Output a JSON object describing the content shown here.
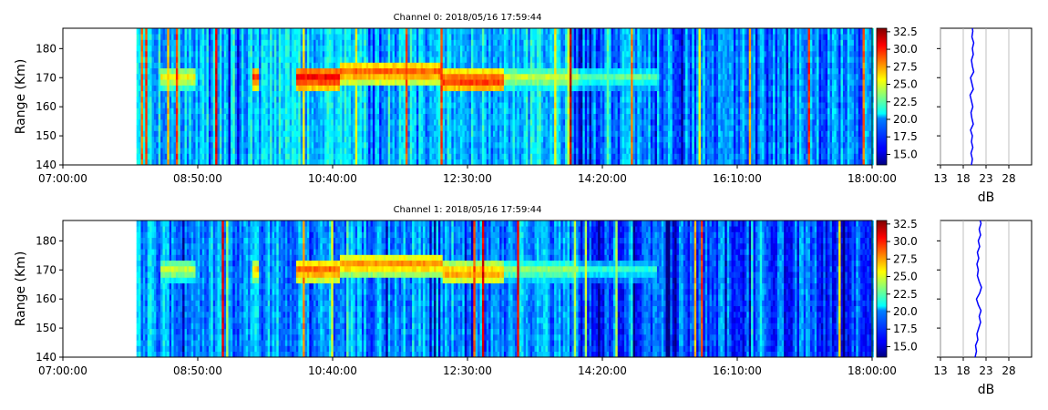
{
  "chart_data": [
    {
      "type": "heatmap",
      "title": "Channel 0: 2018/05/16 17:59:44",
      "ylabel": "Range (Km)",
      "xlabel": "",
      "x_tick_labels": [
        "07:00:00",
        "08:50:00",
        "10:40:00",
        "12:30:00",
        "14:20:00",
        "16:10:00",
        "18:00:00"
      ],
      "xlim": [
        "07:00:00",
        "18:00:00"
      ],
      "y_ticks": [
        140,
        150,
        160,
        170,
        180
      ],
      "ylim": [
        140,
        187
      ],
      "colormap": "jet",
      "colorbar": {
        "range": [
          13.5,
          33
        ],
        "ticks": [
          "15.0",
          "17.5",
          "20.0",
          "22.5",
          "25.0",
          "27.5",
          "30.0",
          "32.5"
        ]
      },
      "data_start": "08:00:00",
      "echo_layer": {
        "segments": [
          {
            "start": "08:20:00",
            "end": "08:48:00",
            "center_km": 170,
            "level_db": 26
          },
          {
            "start": "09:35:00",
            "end": "09:40:00",
            "center_km": 170,
            "level_db": 30
          },
          {
            "start": "10:10:00",
            "end": "10:45:00",
            "center_km": 170,
            "level_db": 31
          },
          {
            "start": "10:45:00",
            "end": "12:10:00",
            "center_km": 172,
            "level_db": 29
          },
          {
            "start": "12:10:00",
            "end": "13:00:00",
            "center_km": 169,
            "level_db": 30
          },
          {
            "start": "13:00:00",
            "end": "14:00:00",
            "center_km": 170,
            "level_db": 25
          },
          {
            "start": "14:00:00",
            "end": "15:05:00",
            "center_km": 170,
            "level_db": 23
          }
        ]
      },
      "noise_floor_db": 20
    },
    {
      "type": "line",
      "title": "",
      "xlabel": "dB",
      "x_ticks": [
        13,
        18,
        23,
        28
      ],
      "xlim": [
        13,
        33
      ],
      "ylim": [
        140,
        187
      ],
      "grid": true,
      "series": [
        {
          "color": "#0000ff",
          "y": [
            140,
            142,
            144,
            146,
            148,
            150,
            152,
            154,
            156,
            158,
            160,
            162,
            164,
            166,
            168,
            170,
            172,
            174,
            176,
            178,
            180,
            182,
            184,
            186,
            187
          ],
          "x": [
            19.8,
            20.0,
            19.7,
            20.1,
            19.8,
            20.0,
            19.6,
            20.2,
            19.9,
            19.7,
            20.1,
            19.8,
            19.5,
            20.2,
            19.9,
            19.6,
            20.3,
            20.0,
            19.8,
            20.2,
            20.0,
            20.3,
            19.9,
            20.1,
            20.0
          ]
        }
      ]
    },
    {
      "type": "heatmap",
      "title": "Channel 1: 2018/05/16 17:59:44",
      "ylabel": "Range (Km)",
      "xlabel": "",
      "x_tick_labels": [
        "07:00:00",
        "08:50:00",
        "10:40:00",
        "12:30:00",
        "14:20:00",
        "16:10:00",
        "18:00:00"
      ],
      "xlim": [
        "07:00:00",
        "18:00:00"
      ],
      "y_ticks": [
        140,
        150,
        160,
        170,
        180
      ],
      "ylim": [
        140,
        187
      ],
      "colormap": "jet",
      "colorbar": {
        "range": [
          13.5,
          33
        ],
        "ticks": [
          "15.0",
          "17.5",
          "20.0",
          "22.5",
          "25.0",
          "27.5",
          "30.0",
          "32.5"
        ]
      },
      "data_start": "08:00:00",
      "echo_layer": {
        "segments": [
          {
            "start": "08:20:00",
            "end": "08:48:00",
            "center_km": 170,
            "level_db": 25
          },
          {
            "start": "09:35:00",
            "end": "09:40:00",
            "center_km": 170,
            "level_db": 27
          },
          {
            "start": "10:10:00",
            "end": "10:45:00",
            "center_km": 170,
            "level_db": 29
          },
          {
            "start": "10:45:00",
            "end": "12:10:00",
            "center_km": 172,
            "level_db": 28
          },
          {
            "start": "12:10:00",
            "end": "13:00:00",
            "center_km": 169,
            "level_db": 28
          },
          {
            "start": "13:00:00",
            "end": "14:00:00",
            "center_km": 170,
            "level_db": 24
          },
          {
            "start": "14:00:00",
            "end": "15:05:00",
            "center_km": 170,
            "level_db": 22
          }
        ]
      },
      "noise_floor_db": 19
    },
    {
      "type": "line",
      "title": "",
      "xlabel": "dB",
      "x_ticks": [
        13,
        18,
        23,
        28
      ],
      "xlim": [
        13,
        33
      ],
      "ylim": [
        140,
        187
      ],
      "grid": true,
      "series": [
        {
          "color": "#0000ff",
          "y": [
            140,
            142,
            144,
            146,
            148,
            150,
            152,
            154,
            156,
            158,
            160,
            162,
            164,
            166,
            168,
            170,
            172,
            174,
            176,
            178,
            180,
            182,
            184,
            186,
            187
          ],
          "x": [
            20.6,
            20.9,
            20.7,
            21.2,
            21.0,
            21.4,
            21.8,
            21.5,
            21.9,
            21.3,
            20.9,
            21.6,
            22.0,
            21.5,
            21.1,
            21.3,
            21.0,
            21.4,
            21.1,
            21.6,
            21.3,
            21.8,
            21.5,
            21.9,
            21.7
          ]
        }
      ]
    }
  ]
}
